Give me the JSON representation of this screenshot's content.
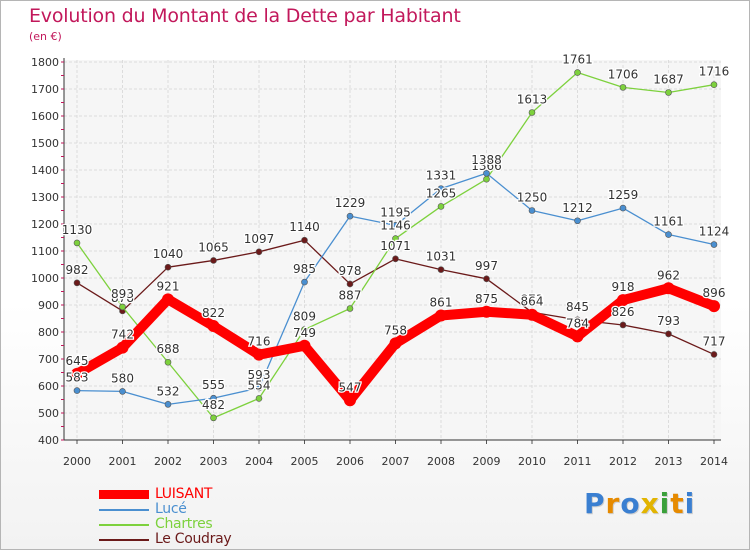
{
  "title": "Evolution du Montant de la Dette par Habitant",
  "unit_label": "(en €)",
  "logo": {
    "letters": [
      "P",
      "r",
      "o",
      "x",
      "i",
      "t",
      "i"
    ],
    "colors": [
      "#3a7fd1",
      "#e68a00",
      "#3a7fd1",
      "#e2b400",
      "#3aa03a",
      "#e68a00",
      "#3a7fd1"
    ]
  },
  "chart_data": {
    "type": "line",
    "x": [
      "2000",
      "2001",
      "2002",
      "2003",
      "2004",
      "2005",
      "2006",
      "2007",
      "2008",
      "2009",
      "2010",
      "2011",
      "2012",
      "2013",
      "2014"
    ],
    "ylim": [
      400,
      1800
    ],
    "yticks": [
      "400",
      "500",
      "600",
      "700",
      "800",
      "900",
      "1000",
      "1100",
      "1200",
      "1300",
      "1400",
      "1500",
      "1600",
      "1700",
      "1800"
    ],
    "grid": true,
    "legend_position": "bottom-left",
    "series": [
      {
        "name": "Le Coudray",
        "color": "#6b1a1a",
        "values": [
          982,
          878,
          1040,
          1065,
          1097,
          1140,
          978,
          1071,
          1031,
          997,
          873,
          845,
          826,
          793,
          717
        ],
        "labels": [
          "982",
          "878",
          "1040",
          "1065",
          "1097",
          "1140",
          "978",
          "1071",
          "1031",
          "997",
          "873",
          "845",
          "826",
          "793",
          "717"
        ]
      },
      {
        "name": "Chartres",
        "color": "#7dd13d",
        "values": [
          1130,
          893,
          688,
          482,
          554,
          809,
          887,
          1146,
          1265,
          1366,
          1613,
          1761,
          1706,
          1687,
          1716
        ],
        "labels": [
          "1130",
          "893",
          "688",
          "482",
          "554",
          "809",
          "887",
          "1146",
          "1265",
          "1366",
          "1613",
          "1761",
          "1706",
          "1687",
          "1716"
        ]
      },
      {
        "name": "Lucé",
        "color": "#4a8fd0",
        "values": [
          583,
          580,
          532,
          555,
          593,
          985,
          1229,
          1195,
          1331,
          1388,
          1250,
          1212,
          1259,
          1161,
          1124
        ],
        "labels": [
          "583",
          "580",
          "532",
          "555",
          "593",
          "985",
          "1229",
          "1195",
          "1331",
          "1388",
          "1250",
          "1212",
          "1259",
          "1161",
          "1124"
        ]
      },
      {
        "name": "LUISANT",
        "color": "#ff0000",
        "values": [
          645,
          742,
          921,
          822,
          716,
          749,
          547,
          758,
          861,
          875,
          864,
          784,
          918,
          962,
          896
        ],
        "labels": [
          "645",
          "742",
          "921",
          "822",
          "716",
          "749",
          "547",
          "758",
          "861",
          "875",
          "864",
          "784",
          "918",
          "962",
          "896"
        ]
      }
    ],
    "legend": [
      {
        "name": "LUISANT",
        "color": "#ff0000",
        "thick": true
      },
      {
        "name": "Lucé",
        "color": "#4a8fd0"
      },
      {
        "name": "Chartres",
        "color": "#7dd13d"
      },
      {
        "name": "Le Coudray",
        "color": "#6b1a1a"
      }
    ]
  }
}
